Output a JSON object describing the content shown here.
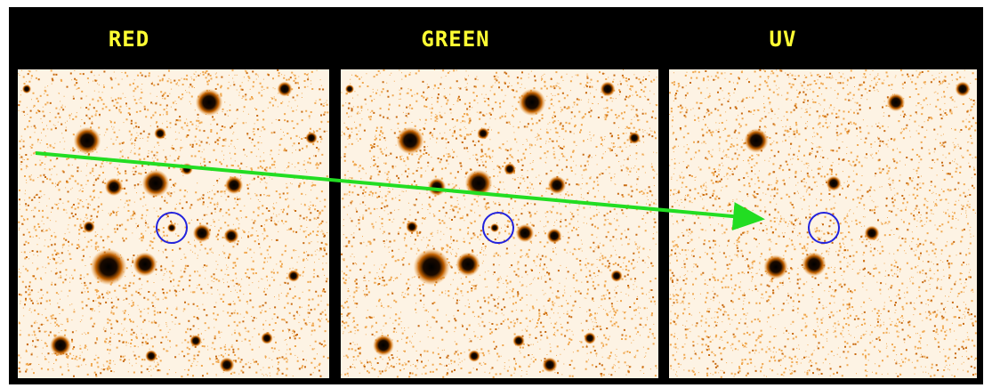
{
  "panels": [
    {
      "label": "RED"
    },
    {
      "label": "GREEN"
    },
    {
      "label": "UV"
    }
  ]
}
